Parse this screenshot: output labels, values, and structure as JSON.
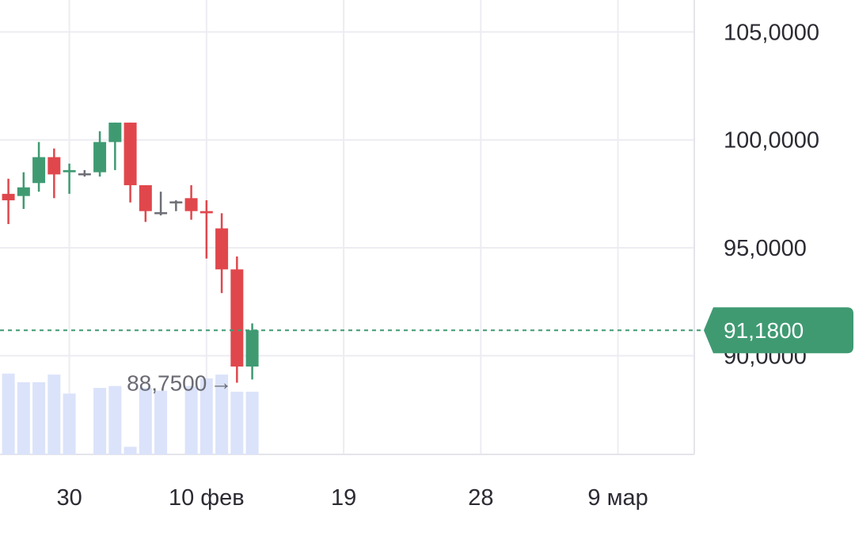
{
  "chart_data": {
    "type": "candlestick",
    "y_tick_labels": [
      "105,0000",
      "100,0000",
      "95,0000",
      "90,0000"
    ],
    "y_tick_values": [
      105,
      100,
      95,
      90
    ],
    "ylim": [
      85.43,
      106.48
    ],
    "x_tick_labels": [
      "30",
      "10 фев",
      "19",
      "28",
      "9 мар"
    ],
    "x_tick_positions": [
      11,
      20,
      29,
      38,
      47
    ],
    "x_range": [
      6.45,
      52.05
    ],
    "grid": true,
    "current_price": {
      "value": 91.18,
      "label": "91,1800"
    },
    "low_annotation": {
      "value": 88.75,
      "label": "88,7500",
      "arrow": "→",
      "candle_index": 15
    },
    "colors": {
      "up": "#3f9a72",
      "down": "#e0474c",
      "doji": "#6e6e76",
      "volume": "#dbe3fa",
      "grid": "#ececf2",
      "price_line": "#3f9a72"
    },
    "candles": [
      {
        "x": 7,
        "open": 97.5,
        "high": 98.2,
        "low": 96.1,
        "close": 97.2
      },
      {
        "x": 8,
        "open": 97.4,
        "high": 98.5,
        "low": 96.8,
        "close": 97.8
      },
      {
        "x": 9,
        "open": 98.0,
        "high": 99.9,
        "low": 97.6,
        "close": 99.2
      },
      {
        "x": 10,
        "open": 99.2,
        "high": 99.6,
        "low": 97.3,
        "close": 98.4
      },
      {
        "x": 11,
        "open": 98.5,
        "high": 98.9,
        "low": 97.5,
        "close": 98.6
      },
      {
        "x": 12,
        "open": 98.45,
        "high": 98.6,
        "low": 98.3,
        "close": 98.45
      },
      {
        "x": 13,
        "open": 98.5,
        "high": 100.4,
        "low": 98.3,
        "close": 99.9
      },
      {
        "x": 14,
        "open": 99.9,
        "high": 100.8,
        "low": 98.6,
        "close": 100.8
      },
      {
        "x": 15,
        "open": 100.8,
        "high": 100.8,
        "low": 97.1,
        "close": 97.9
      },
      {
        "x": 16,
        "open": 97.9,
        "high": 97.9,
        "low": 96.2,
        "close": 96.7
      },
      {
        "x": 17,
        "open": 96.65,
        "high": 97.6,
        "low": 96.5,
        "close": 96.65
      },
      {
        "x": 18,
        "open": 97.15,
        "high": 97.2,
        "low": 96.7,
        "close": 97.15
      },
      {
        "x": 19,
        "open": 97.3,
        "high": 97.9,
        "low": 96.3,
        "close": 96.7
      },
      {
        "x": 20,
        "open": 96.7,
        "high": 97.2,
        "low": 94.5,
        "close": 96.6
      },
      {
        "x": 21,
        "open": 95.9,
        "high": 96.6,
        "low": 92.9,
        "close": 94.0
      },
      {
        "x": 22,
        "open": 94.0,
        "high": 94.6,
        "low": 88.75,
        "close": 89.5
      },
      {
        "x": 23,
        "open": 89.5,
        "high": 91.5,
        "low": 88.9,
        "close": 91.18
      }
    ],
    "volume": [
      {
        "x": 7,
        "value": 0.85
      },
      {
        "x": 8,
        "value": 0.76
      },
      {
        "x": 9,
        "value": 0.76
      },
      {
        "x": 10,
        "value": 0.84
      },
      {
        "x": 11,
        "value": 0.64
      },
      {
        "x": 13,
        "value": 0.7
      },
      {
        "x": 14,
        "value": 0.72
      },
      {
        "x": 15,
        "value": 0.08
      },
      {
        "x": 16,
        "value": 0.7
      },
      {
        "x": 17,
        "value": 0.67
      },
      {
        "x": 19,
        "value": 0.72
      },
      {
        "x": 20,
        "value": 0.8
      },
      {
        "x": 21,
        "value": 0.84
      },
      {
        "x": 22,
        "value": 0.66
      },
      {
        "x": 23,
        "value": 0.66
      }
    ]
  }
}
